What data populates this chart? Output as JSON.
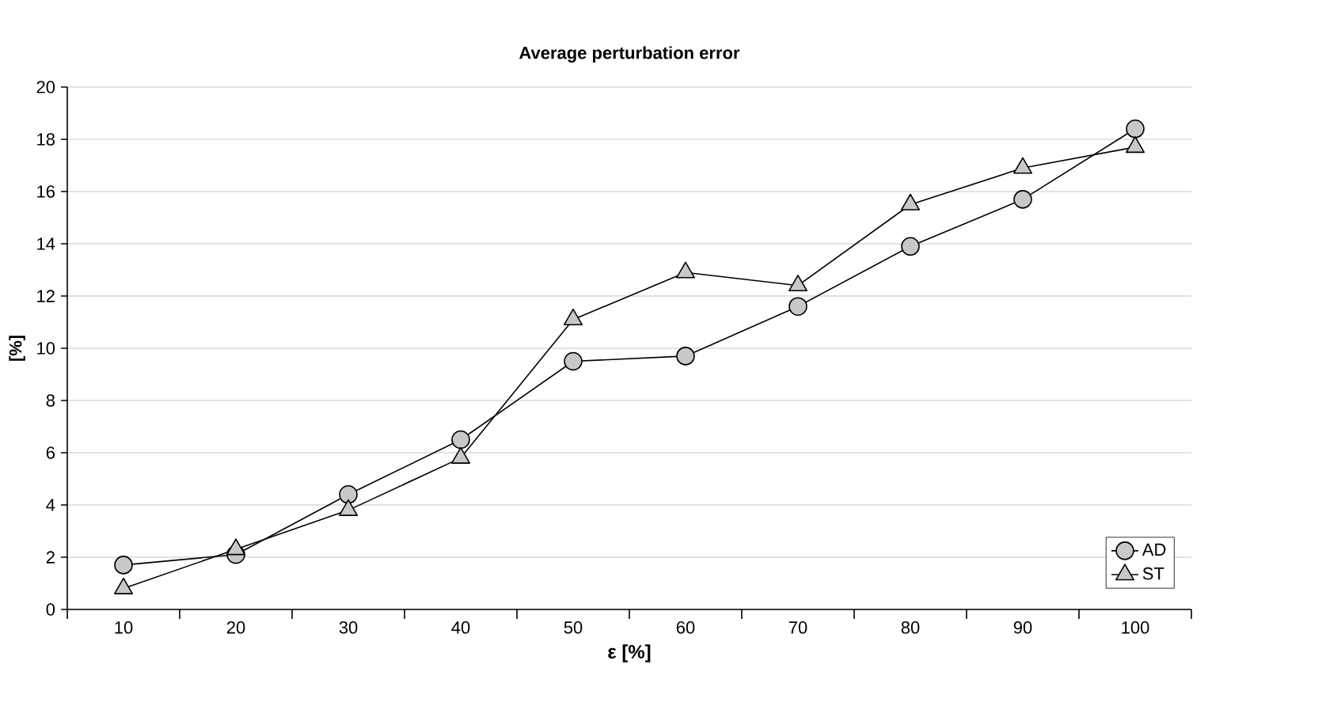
{
  "chart_data": {
    "type": "line",
    "title": "Average perturbation error",
    "xlabel": "ε  [%]",
    "ylabel": "[%]",
    "categories": [
      "10",
      "20",
      "30",
      "40",
      "50",
      "60",
      "70",
      "80",
      "90",
      "100"
    ],
    "series": [
      {
        "name": "AD",
        "color": "#c8c8c8",
        "marker": "circle",
        "values": [
          1.7,
          2.1,
          4.4,
          6.5,
          9.5,
          9.7,
          11.6,
          13.9,
          15.7,
          18.4
        ]
      },
      {
        "name": "ST",
        "color": "#c8c8c8",
        "marker": "triangle",
        "values": [
          0.8,
          2.3,
          3.8,
          5.8,
          11.1,
          12.9,
          12.4,
          15.5,
          16.9,
          17.7
        ]
      }
    ],
    "ylim": [
      0,
      20
    ],
    "yticks": [
      0,
      2,
      4,
      6,
      8,
      10,
      12,
      14,
      16,
      18,
      20
    ],
    "grid": "y",
    "legend": "bottom right",
    "line_style": "solid"
  }
}
